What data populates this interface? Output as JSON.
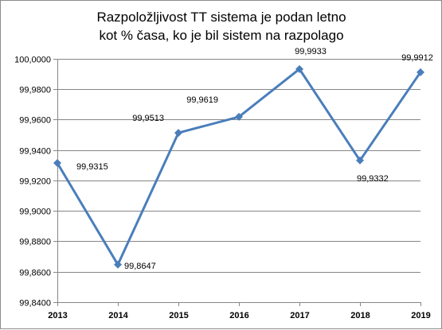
{
  "chart_data": {
    "type": "line",
    "title_lines": [
      "Razpoložljivost TT sistema je podan letno",
      "kot % časa, ko je bil sistem na razpolago"
    ],
    "categories": [
      "2013",
      "2014",
      "2015",
      "2016",
      "2017",
      "2018",
      "2019"
    ],
    "values": [
      99.9315,
      99.8647,
      99.9513,
      99.9619,
      99.9933,
      99.9332,
      99.9912
    ],
    "data_labels": [
      "99,9315",
      "99,8647",
      "99,9513",
      "99,9619",
      "99,9933",
      "99,9332",
      "99,9912"
    ],
    "y_ticks": [
      "99,8400",
      "99,8600",
      "99,8800",
      "99,9000",
      "99,9200",
      "99,9400",
      "99,9600",
      "99,9800",
      "100,0000"
    ],
    "ylim": [
      99.84,
      100.0
    ],
    "y_step": 0.02,
    "grid": true,
    "series_color": "#4a7ebb",
    "grid_color": "#868686"
  }
}
